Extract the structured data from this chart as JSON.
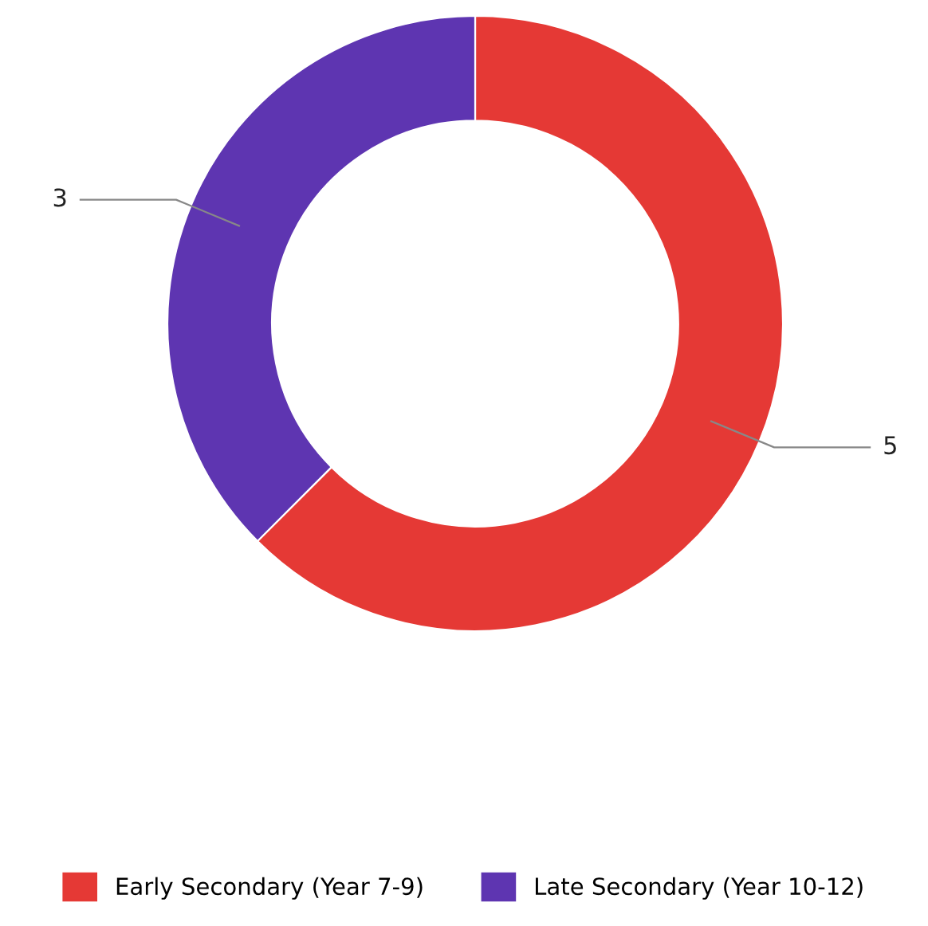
{
  "chart_data": {
    "type": "donut",
    "categories": [
      "Early Secondary (Year 7-9)",
      "Late Secondary (Year 10-12)"
    ],
    "values": [
      5,
      3
    ],
    "colors": [
      "#e53935",
      "#5e35b1"
    ],
    "data_labels": true,
    "legend": "bottom"
  }
}
